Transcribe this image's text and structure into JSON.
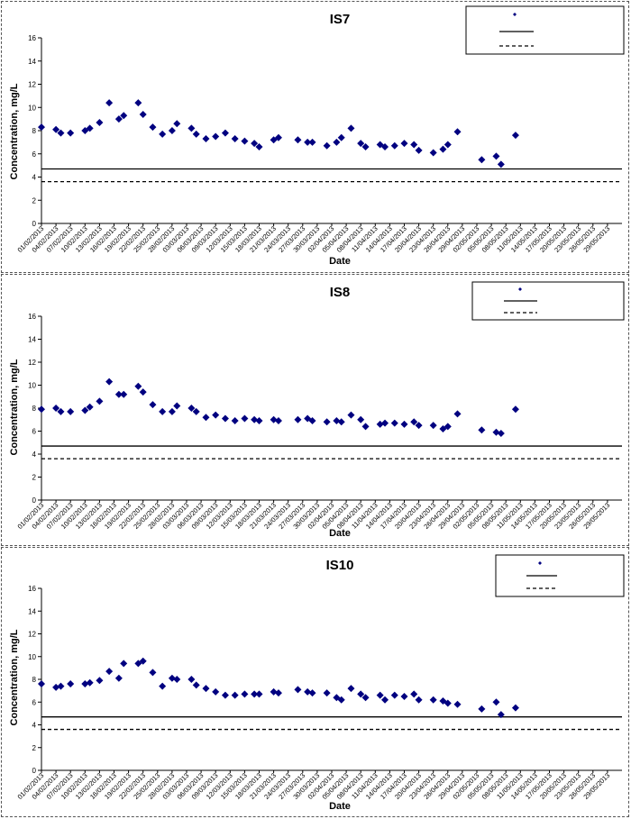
{
  "chart_data": [
    {
      "type": "scatter",
      "title": "IS7",
      "xlabel": "Date",
      "ylabel": "Concentration, mg/L",
      "ylim": [
        0,
        16
      ],
      "yticks": [
        0,
        2,
        4,
        6,
        8,
        10,
        12,
        14,
        16
      ],
      "grid": false,
      "legend_position": "top-right",
      "x_tick_labels": [
        "01/02/2013",
        "04/02/2013",
        "07/02/2013",
        "10/02/2013",
        "13/02/2013",
        "16/02/2013",
        "19/02/2013",
        "22/02/2013",
        "25/02/2013",
        "28/02/2013",
        "03/03/2013",
        "06/03/2013",
        "09/03/2013",
        "12/03/2013",
        "15/03/2013",
        "18/03/2013",
        "21/03/2013",
        "24/03/2013",
        "27/03/2013",
        "30/03/2013",
        "02/04/2013",
        "05/04/2013",
        "08/04/2013",
        "11/04/2013",
        "14/04/2013",
        "17/04/2013",
        "20/04/2013",
        "23/04/2013",
        "26/04/2013",
        "29/04/2013",
        "02/05/2013",
        "05/05/2013",
        "08/05/2013",
        "11/05/2013",
        "14/05/2013",
        "17/05/2013",
        "20/05/2013",
        "23/05/2013",
        "26/05/2013",
        "29/05/2013"
      ],
      "x_tick_step_days": 3,
      "reference_lines": [
        {
          "style": "solid",
          "y": 4.7
        },
        {
          "style": "dashed",
          "y": 3.6
        }
      ],
      "series": [
        {
          "marker": "diamond",
          "color": "#000080",
          "points": [
            [
              "01/02/2013",
              8.3
            ],
            [
              "04/02/2013",
              8.1
            ],
            [
              "05/02/2013",
              7.8
            ],
            [
              "07/02/2013",
              7.8
            ],
            [
              "10/02/2013",
              8.0
            ],
            [
              "11/02/2013",
              8.2
            ],
            [
              "13/02/2013",
              8.7
            ],
            [
              "15/02/2013",
              10.4
            ],
            [
              "17/02/2013",
              9.0
            ],
            [
              "18/02/2013",
              9.3
            ],
            [
              "21/02/2013",
              10.4
            ],
            [
              "22/02/2013",
              9.4
            ],
            [
              "24/02/2013",
              8.3
            ],
            [
              "26/02/2013",
              7.7
            ],
            [
              "28/02/2013",
              8.0
            ],
            [
              "01/03/2013",
              8.6
            ],
            [
              "04/03/2013",
              8.2
            ],
            [
              "05/03/2013",
              7.7
            ],
            [
              "07/03/2013",
              7.3
            ],
            [
              "09/03/2013",
              7.5
            ],
            [
              "11/03/2013",
              7.8
            ],
            [
              "13/03/2013",
              7.3
            ],
            [
              "15/03/2013",
              7.1
            ],
            [
              "17/03/2013",
              6.9
            ],
            [
              "18/03/2013",
              6.6
            ],
            [
              "21/03/2013",
              7.2
            ],
            [
              "22/03/2013",
              7.4
            ],
            [
              "26/03/2013",
              7.2
            ],
            [
              "28/03/2013",
              7.0
            ],
            [
              "29/03/2013",
              7.0
            ],
            [
              "01/04/2013",
              6.7
            ],
            [
              "03/04/2013",
              7.0
            ],
            [
              "04/04/2013",
              7.4
            ],
            [
              "06/04/2013",
              8.2
            ],
            [
              "08/04/2013",
              6.9
            ],
            [
              "09/04/2013",
              6.6
            ],
            [
              "12/04/2013",
              6.8
            ],
            [
              "13/04/2013",
              6.6
            ],
            [
              "15/04/2013",
              6.7
            ],
            [
              "17/04/2013",
              6.9
            ],
            [
              "19/04/2013",
              6.8
            ],
            [
              "20/04/2013",
              6.3
            ],
            [
              "23/04/2013",
              6.1
            ],
            [
              "25/04/2013",
              6.4
            ],
            [
              "26/04/2013",
              6.8
            ],
            [
              "28/04/2013",
              7.9
            ],
            [
              "03/05/2013",
              5.5
            ],
            [
              "06/05/2013",
              5.8
            ],
            [
              "07/05/2013",
              5.1
            ],
            [
              "10/05/2013",
              7.6
            ]
          ]
        }
      ]
    },
    {
      "type": "scatter",
      "title": "IS8",
      "xlabel": "Date",
      "ylabel": "Concentration, mg/L",
      "ylim": [
        0,
        16
      ],
      "yticks": [
        0,
        2,
        4,
        6,
        8,
        10,
        12,
        14,
        16
      ],
      "grid": false,
      "legend_position": "top-right",
      "x_tick_labels": [
        "01/02/2013",
        "04/02/2013",
        "07/02/2013",
        "10/02/2013",
        "13/02/2013",
        "16/02/2013",
        "19/02/2013",
        "22/02/2013",
        "25/02/2013",
        "28/02/2013",
        "03/03/2013",
        "06/03/2013",
        "09/03/2013",
        "12/03/2013",
        "15/03/2013",
        "18/03/2013",
        "21/03/2013",
        "24/03/2013",
        "27/03/2013",
        "30/03/2013",
        "02/04/2013",
        "05/04/2013",
        "08/04/2013",
        "11/04/2013",
        "14/04/2013",
        "17/04/2013",
        "20/04/2013",
        "23/04/2013",
        "26/04/2013",
        "29/04/2013",
        "02/05/2013",
        "05/05/2013",
        "08/05/2013",
        "11/05/2013",
        "14/05/2013",
        "17/05/2013",
        "20/05/2013",
        "23/05/2013",
        "26/05/2013",
        "29/05/2013"
      ],
      "x_tick_step_days": 3,
      "reference_lines": [
        {
          "style": "solid",
          "y": 4.7
        },
        {
          "style": "dashed",
          "y": 3.6
        }
      ],
      "series": [
        {
          "marker": "diamond",
          "color": "#000080",
          "points": [
            [
              "01/02/2013",
              7.9
            ],
            [
              "04/02/2013",
              8.0
            ],
            [
              "05/02/2013",
              7.7
            ],
            [
              "07/02/2013",
              7.7
            ],
            [
              "10/02/2013",
              7.8
            ],
            [
              "11/02/2013",
              8.1
            ],
            [
              "13/02/2013",
              8.6
            ],
            [
              "15/02/2013",
              10.3
            ],
            [
              "17/02/2013",
              9.2
            ],
            [
              "18/02/2013",
              9.2
            ],
            [
              "21/02/2013",
              9.9
            ],
            [
              "22/02/2013",
              9.4
            ],
            [
              "24/02/2013",
              8.3
            ],
            [
              "26/02/2013",
              7.7
            ],
            [
              "28/02/2013",
              7.7
            ],
            [
              "01/03/2013",
              8.2
            ],
            [
              "04/03/2013",
              8.0
            ],
            [
              "05/03/2013",
              7.7
            ],
            [
              "07/03/2013",
              7.2
            ],
            [
              "09/03/2013",
              7.4
            ],
            [
              "11/03/2013",
              7.1
            ],
            [
              "13/03/2013",
              6.9
            ],
            [
              "15/03/2013",
              7.1
            ],
            [
              "17/03/2013",
              7.0
            ],
            [
              "18/03/2013",
              6.9
            ],
            [
              "21/03/2013",
              7.0
            ],
            [
              "22/03/2013",
              6.9
            ],
            [
              "26/03/2013",
              7.0
            ],
            [
              "28/03/2013",
              7.1
            ],
            [
              "29/03/2013",
              6.9
            ],
            [
              "01/04/2013",
              6.8
            ],
            [
              "03/04/2013",
              6.9
            ],
            [
              "04/04/2013",
              6.8
            ],
            [
              "06/04/2013",
              7.4
            ],
            [
              "08/04/2013",
              7.0
            ],
            [
              "09/04/2013",
              6.4
            ],
            [
              "12/04/2013",
              6.6
            ],
            [
              "13/04/2013",
              6.7
            ],
            [
              "15/04/2013",
              6.7
            ],
            [
              "17/04/2013",
              6.6
            ],
            [
              "19/04/2013",
              6.8
            ],
            [
              "20/04/2013",
              6.5
            ],
            [
              "23/04/2013",
              6.5
            ],
            [
              "25/04/2013",
              6.2
            ],
            [
              "26/04/2013",
              6.4
            ],
            [
              "28/04/2013",
              7.5
            ],
            [
              "03/05/2013",
              6.1
            ],
            [
              "06/05/2013",
              5.9
            ],
            [
              "07/05/2013",
              5.8
            ],
            [
              "10/05/2013",
              7.9
            ]
          ]
        }
      ]
    },
    {
      "type": "scatter",
      "title": "IS10",
      "xlabel": "Date",
      "ylabel": "Concentration, mg/L",
      "ylim": [
        0,
        16
      ],
      "yticks": [
        0,
        2,
        4,
        6,
        8,
        10,
        12,
        14,
        16
      ],
      "grid": false,
      "legend_position": "top-right",
      "x_tick_labels": [
        "01/02/2013",
        "04/02/2013",
        "07/02/2013",
        "10/02/2013",
        "13/02/2013",
        "16/02/2013",
        "19/02/2013",
        "22/02/2013",
        "25/02/2013",
        "28/02/2013",
        "03/03/2013",
        "06/03/2013",
        "09/03/2013",
        "12/03/2013",
        "15/03/2013",
        "18/03/2013",
        "21/03/2013",
        "24/03/2013",
        "27/03/2013",
        "30/03/2013",
        "02/04/2013",
        "05/04/2013",
        "08/04/2013",
        "11/04/2013",
        "14/04/2013",
        "17/04/2013",
        "20/04/2013",
        "23/04/2013",
        "26/04/2013",
        "29/04/2013",
        "02/05/2013",
        "05/05/2013",
        "08/05/2013",
        "11/05/2013",
        "14/05/2013",
        "17/05/2013",
        "20/05/2013",
        "23/05/2013",
        "26/05/2013",
        "29/05/2013"
      ],
      "x_tick_step_days": 3,
      "reference_lines": [
        {
          "style": "solid",
          "y": 4.7
        },
        {
          "style": "dashed",
          "y": 3.6
        }
      ],
      "series": [
        {
          "marker": "diamond",
          "color": "#000080",
          "points": [
            [
              "01/02/2013",
              7.6
            ],
            [
              "04/02/2013",
              7.3
            ],
            [
              "05/02/2013",
              7.4
            ],
            [
              "07/02/2013",
              7.6
            ],
            [
              "10/02/2013",
              7.6
            ],
            [
              "11/02/2013",
              7.7
            ],
            [
              "13/02/2013",
              7.9
            ],
            [
              "15/02/2013",
              8.7
            ],
            [
              "17/02/2013",
              8.1
            ],
            [
              "18/02/2013",
              9.4
            ],
            [
              "21/02/2013",
              9.4
            ],
            [
              "22/02/2013",
              9.6
            ],
            [
              "24/02/2013",
              8.6
            ],
            [
              "26/02/2013",
              7.4
            ],
            [
              "28/02/2013",
              8.1
            ],
            [
              "01/03/2013",
              8.0
            ],
            [
              "04/03/2013",
              8.0
            ],
            [
              "05/03/2013",
              7.5
            ],
            [
              "07/03/2013",
              7.2
            ],
            [
              "09/03/2013",
              6.9
            ],
            [
              "11/03/2013",
              6.6
            ],
            [
              "13/03/2013",
              6.6
            ],
            [
              "15/03/2013",
              6.7
            ],
            [
              "17/03/2013",
              6.7
            ],
            [
              "18/03/2013",
              6.7
            ],
            [
              "21/03/2013",
              6.9
            ],
            [
              "22/03/2013",
              6.8
            ],
            [
              "26/03/2013",
              7.1
            ],
            [
              "28/03/2013",
              6.9
            ],
            [
              "29/03/2013",
              6.8
            ],
            [
              "01/04/2013",
              6.8
            ],
            [
              "03/04/2013",
              6.4
            ],
            [
              "04/04/2013",
              6.2
            ],
            [
              "06/04/2013",
              7.2
            ],
            [
              "08/04/2013",
              6.7
            ],
            [
              "09/04/2013",
              6.4
            ],
            [
              "12/04/2013",
              6.6
            ],
            [
              "13/04/2013",
              6.2
            ],
            [
              "15/04/2013",
              6.6
            ],
            [
              "17/04/2013",
              6.5
            ],
            [
              "19/04/2013",
              6.7
            ],
            [
              "20/04/2013",
              6.2
            ],
            [
              "23/04/2013",
              6.2
            ],
            [
              "25/04/2013",
              6.1
            ],
            [
              "26/04/2013",
              5.9
            ],
            [
              "28/04/2013",
              5.8
            ],
            [
              "03/05/2013",
              5.4
            ],
            [
              "06/05/2013",
              6.0
            ],
            [
              "07/05/2013",
              4.9
            ],
            [
              "10/05/2013",
              5.5
            ]
          ]
        }
      ]
    }
  ]
}
